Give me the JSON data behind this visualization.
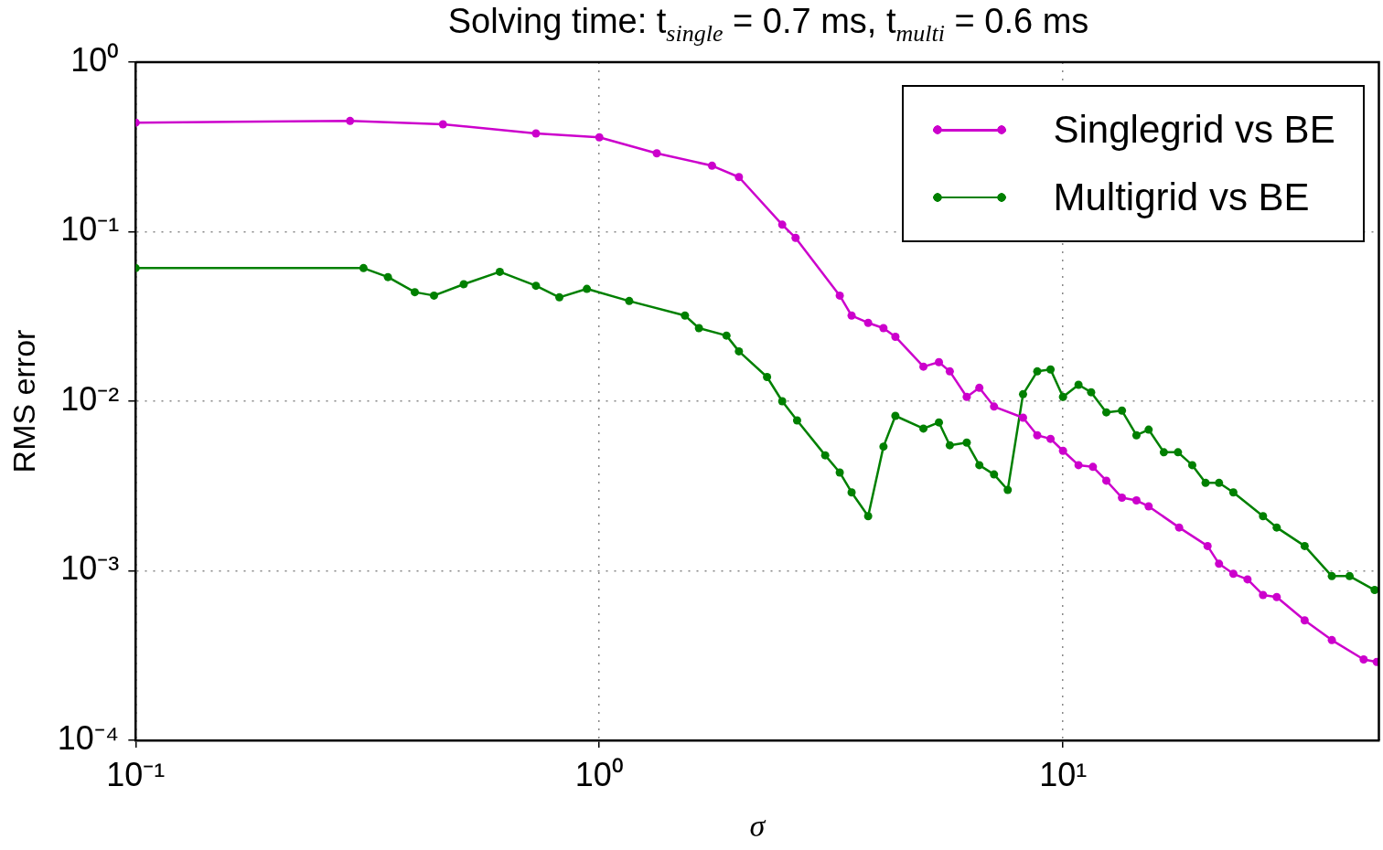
{
  "chart_data": {
    "type": "line",
    "title": "Solving time: t$_{single}$ = 0.7 ms, t$_{multi}$ = 0.6 ms",
    "xlabel": "σ",
    "ylabel": "RMS error",
    "log": "xy",
    "grid": true,
    "legend": "top right",
    "marker": "circle",
    "line_style": "solid",
    "xlim": [
      0.1,
      48
    ],
    "ylim": [
      0.0001,
      1
    ],
    "xticks": [
      {
        "value": 0.1,
        "label": "10⁻¹"
      },
      {
        "value": 1,
        "label": "10⁰"
      },
      {
        "value": 10,
        "label": "10¹"
      }
    ],
    "yticks": [
      {
        "value": 0.0001,
        "label": "10⁻⁴"
      },
      {
        "value": 0.001,
        "label": "10⁻³"
      },
      {
        "value": 0.01,
        "label": "10⁻²"
      },
      {
        "value": 0.1,
        "label": "10⁻¹"
      },
      {
        "value": 1,
        "label": "10⁰"
      }
    ],
    "series": [
      {
        "name": "Singlegrid vs BE",
        "color": "#cc00cc",
        "x": [
          0.1,
          0.29,
          0.46,
          0.73,
          1.0,
          1.33,
          1.75,
          2.0,
          2.48,
          2.65,
          3.3,
          3.5,
          3.8,
          4.1,
          4.35,
          5.0,
          5.4,
          5.7,
          6.2,
          6.6,
          7.1,
          8.2,
          8.8,
          9.4,
          10,
          10.8,
          11.6,
          12.4,
          13.4,
          14.4,
          15.3,
          17.8,
          20.5,
          21.7,
          23.3,
          25,
          27,
          28.9,
          33.2,
          38,
          44.5,
          47.5
        ],
        "values": [
          0.44,
          0.45,
          0.43,
          0.38,
          0.36,
          0.29,
          0.245,
          0.21,
          0.11,
          0.092,
          0.042,
          0.032,
          0.029,
          0.027,
          0.024,
          0.016,
          0.017,
          0.015,
          0.0106,
          0.012,
          0.0093,
          0.008,
          0.0063,
          0.006,
          0.0051,
          0.0042,
          0.0041,
          0.0034,
          0.0027,
          0.0026,
          0.0024,
          0.0018,
          0.0014,
          0.0011,
          0.00096,
          0.00089,
          0.00072,
          0.0007,
          0.00051,
          0.00039,
          0.0003,
          0.00029
        ]
      },
      {
        "name": "Multigrid vs BE",
        "color": "#008000",
        "x": [
          0.1,
          0.31,
          0.35,
          0.4,
          0.44,
          0.51,
          0.61,
          0.73,
          0.82,
          0.94,
          1.16,
          1.53,
          1.64,
          1.88,
          2.0,
          2.3,
          2.48,
          2.67,
          3.07,
          3.3,
          3.5,
          3.8,
          4.1,
          4.35,
          5.0,
          5.4,
          5.7,
          6.2,
          6.6,
          7.1,
          7.6,
          8.2,
          8.8,
          9.4,
          10,
          10.8,
          11.5,
          12.4,
          13.4,
          14.4,
          15.3,
          16.5,
          17.7,
          19.0,
          20.3,
          21.7,
          23.3,
          27,
          28.9,
          33.2,
          38,
          41.5,
          47
        ],
        "values": [
          0.061,
          0.061,
          0.054,
          0.044,
          0.042,
          0.049,
          0.058,
          0.048,
          0.041,
          0.046,
          0.039,
          0.032,
          0.027,
          0.0244,
          0.0197,
          0.0139,
          0.01,
          0.0077,
          0.0048,
          0.0038,
          0.0029,
          0.0021,
          0.0054,
          0.0082,
          0.0069,
          0.0075,
          0.0055,
          0.0057,
          0.0042,
          0.0037,
          0.003,
          0.011,
          0.015,
          0.0154,
          0.0106,
          0.0125,
          0.0113,
          0.0086,
          0.0088,
          0.0063,
          0.0068,
          0.005,
          0.005,
          0.0042,
          0.0033,
          0.0033,
          0.0029,
          0.0021,
          0.0018,
          0.0014,
          0.00093,
          0.00093,
          0.00077
        ]
      }
    ]
  }
}
